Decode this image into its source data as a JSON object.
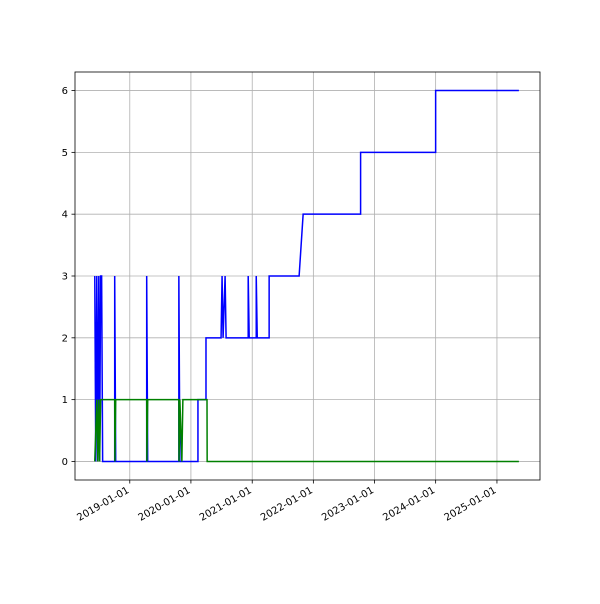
{
  "chart_data": {
    "type": "line",
    "xlim": [
      "2018-02-08",
      "2025-09-15"
    ],
    "xticks": [
      "2019-01-01",
      "2020-01-01",
      "2021-01-01",
      "2022-01-01",
      "2023-01-01",
      "2024-01-01",
      "2025-01-01"
    ],
    "ylim": [
      -0.3,
      6.3
    ],
    "yticks": [
      0,
      1,
      2,
      3,
      4,
      5,
      6
    ],
    "grid": true,
    "series": [
      {
        "color": "#0000ff",
        "x": [
          "2018-06-06",
          "2018-06-12",
          "2018-06-18",
          "2018-06-24",
          "2018-06-30",
          "2018-07-05",
          "2018-07-11",
          "2018-07-17",
          "2018-07-23",
          "2018-10-03",
          "2018-10-03",
          "2018-10-09",
          "2019-04-12",
          "2019-04-12",
          "2019-04-18",
          "2019-10-21",
          "2019-10-21",
          "2019-10-27",
          "2020-02-12",
          "2020-02-12",
          "2020-03-31",
          "2020-03-31",
          "2020-06-29",
          "2020-07-05",
          "2020-07-11",
          "2020-07-23",
          "2020-07-29",
          "2020-12-08",
          "2020-12-08",
          "2020-12-14",
          "2021-01-25",
          "2021-01-25",
          "2021-01-31",
          "2021-04-12",
          "2021-04-12",
          "2021-10-08",
          "2021-11-01",
          "2022-10-10",
          "2022-10-10",
          "2024-01-01",
          "2024-01-01",
          "2025-05-12"
        ],
        "values": [
          3,
          0,
          3,
          0,
          3,
          0,
          3,
          3,
          0,
          0,
          3,
          0,
          0,
          3,
          0,
          0,
          3,
          0,
          0,
          1,
          1,
          2,
          2,
          3,
          2,
          3,
          2,
          2,
          3,
          2,
          2,
          3,
          2,
          2,
          3,
          3,
          4,
          4,
          5,
          5,
          6,
          6
        ]
      },
      {
        "color": "#008000",
        "x": [
          "2018-06-06",
          "2018-06-18",
          "2018-06-24",
          "2018-06-30",
          "2018-07-05",
          "2018-07-11",
          "2018-10-03",
          "2018-10-04",
          "2018-10-09",
          "2019-04-12",
          "2019-04-13",
          "2019-04-18",
          "2019-10-21",
          "2019-10-22",
          "2019-10-27",
          "2019-11-08",
          "2019-11-14",
          "2020-04-06",
          "2020-04-07",
          "2025-05-12"
        ],
        "values": [
          0,
          1,
          0,
          1,
          0,
          1,
          1,
          0,
          1,
          1,
          0,
          1,
          1,
          0,
          1,
          0,
          1,
          1,
          0,
          0
        ]
      }
    ]
  }
}
